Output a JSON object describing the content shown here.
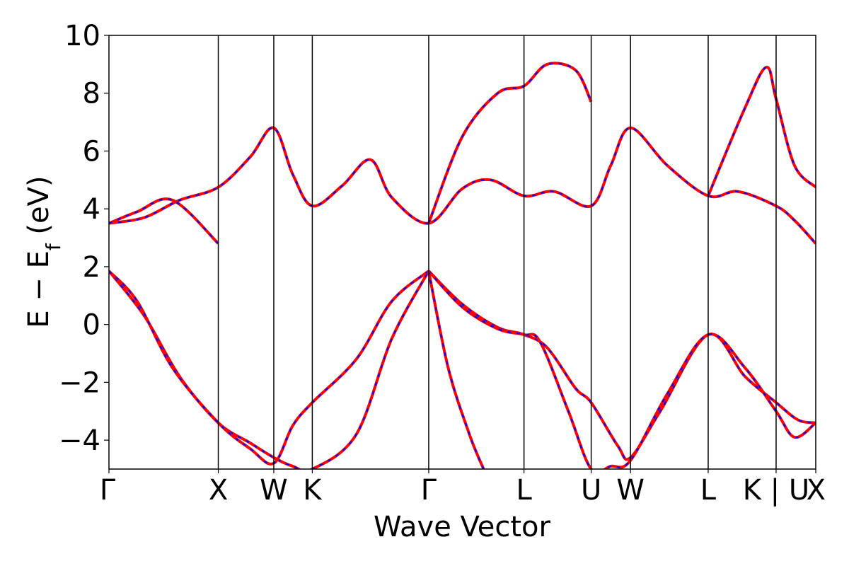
{
  "chart_data": {
    "type": "line",
    "title": "",
    "xlabel": "Wave Vector",
    "ylabel": "E − E",
    "ylabel_subscript": "f",
    "ylabel_unit": " (eV)",
    "ylim": [
      -5,
      10
    ],
    "yticks": [
      {
        "value": -4,
        "label": "−4"
      },
      {
        "value": -2,
        "label": "−2"
      },
      {
        "value": 0,
        "label": "0"
      },
      {
        "value": 2,
        "label": "2"
      },
      {
        "value": 4,
        "label": "4"
      },
      {
        "value": 6,
        "label": "6"
      },
      {
        "value": 8,
        "label": "8"
      },
      {
        "value": 10,
        "label": "10"
      }
    ],
    "xlim": [
      0,
      1
    ],
    "kpoints": [
      {
        "x": 0.0,
        "label": "Γ"
      },
      {
        "x": 0.1547,
        "label": "X"
      },
      {
        "x": 0.2332,
        "label": "W"
      },
      {
        "x": 0.2877,
        "label": "K"
      },
      {
        "x": 0.4524,
        "label": "Γ"
      },
      {
        "x": 0.5872,
        "label": "L"
      },
      {
        "x": 0.6823,
        "label": "U"
      },
      {
        "x": 0.7379,
        "label": "W"
      },
      {
        "x": 0.8478,
        "label": "L"
      },
      {
        "x": 0.9439,
        "label": "K | U"
      },
      {
        "x": 1.0,
        "label": "X"
      }
    ],
    "colors": {
      "solid": "#ff0000",
      "dashed": "#0000ff",
      "frame": "#000000"
    },
    "series": [
      {
        "style": "solid-red-with-dashed-blue",
        "x": [
          0,
          0.05,
          0.1,
          0.1547,
          0.2,
          0.2332,
          0.26,
          0.2877,
          0.35,
          0.4,
          0.4524
        ],
        "y": [
          1.85,
          0.3,
          -1.8,
          -3.4,
          -4.1,
          -4.6,
          -4.9,
          -5.0,
          -3.8,
          -0.5,
          1.85
        ]
      },
      {
        "style": "solid-red-with-dashed-blue",
        "x": [
          0,
          0.04,
          0.09,
          0.1547,
          0.2,
          0.2332,
          0.26,
          0.2877,
          0.35,
          0.4,
          0.4524
        ],
        "y": [
          1.85,
          0.8,
          -1.5,
          -3.4,
          -4.3,
          -4.8,
          -3.5,
          -2.7,
          -1.2,
          0.8,
          1.85
        ]
      },
      {
        "style": "solid-red-with-dashed-blue",
        "x": [
          0.4524,
          0.5,
          0.55,
          0.5872,
          0.62,
          0.66,
          0.6823,
          0.72,
          0.7379,
          0.78,
          0.8478,
          0.9,
          0.9439,
          0.975,
          1.0
        ],
        "y": [
          1.85,
          0.7,
          -0.1,
          -0.35,
          -0.8,
          -2.2,
          -2.7,
          -4.2,
          -4.6,
          -3.0,
          -0.35,
          -1.8,
          -2.7,
          -3.3,
          -3.4
        ]
      },
      {
        "style": "solid-red-with-dashed-blue",
        "x": [
          0.4524,
          0.5,
          0.55,
          0.5872,
          0.61,
          0.65,
          0.6823,
          0.71,
          0.7379,
          0.79,
          0.8478,
          0.9,
          0.9439,
          0.97,
          1.0
        ],
        "y": [
          1.85,
          0.6,
          -0.15,
          -0.35,
          -0.6,
          -3.0,
          -5.0,
          -4.9,
          -4.7,
          -2.4,
          -0.35,
          -1.5,
          -3.0,
          -3.9,
          -3.4
        ]
      },
      {
        "style": "solid-red-with-dashed-blue",
        "x": [
          0.4524,
          0.48,
          0.51,
          0.53
        ],
        "y": [
          1.85,
          -1.5,
          -3.8,
          -5.0
        ]
      },
      {
        "style": "solid-red-with-dashed-blue",
        "x": [
          0,
          0.05,
          0.1,
          0.1547,
          0.2,
          0.2332,
          0.26,
          0.2877,
          0.33,
          0.37,
          0.4,
          0.4524,
          0.5,
          0.54,
          0.5872,
          0.63,
          0.6823,
          0.71,
          0.7379,
          0.79,
          0.8478,
          0.89,
          0.9439,
          0.97,
          1.0
        ],
        "y": [
          3.5,
          3.7,
          4.3,
          4.75,
          5.8,
          6.8,
          5.2,
          4.1,
          4.8,
          5.7,
          4.4,
          3.5,
          4.7,
          5.0,
          4.45,
          4.6,
          4.1,
          5.5,
          6.8,
          5.5,
          4.45,
          4.6,
          4.1,
          3.6,
          2.8
        ]
      },
      {
        "style": "solid-red-with-dashed-blue",
        "x": [
          0,
          0.04,
          0.09,
          0.1547
        ],
        "y": [
          3.5,
          3.9,
          4.3,
          2.8
        ]
      },
      {
        "style": "solid-red-with-dashed-blue",
        "x": [
          0.4524,
          0.5,
          0.55,
          0.5872,
          0.62,
          0.66,
          0.6823
        ],
        "y": [
          3.5,
          6.5,
          8.0,
          8.25,
          9.0,
          8.8,
          7.7
        ]
      },
      {
        "style": "solid-red-with-dashed-blue",
        "x": [
          0.8478,
          0.9,
          0.93,
          0.9439,
          0.97,
          1.0
        ],
        "y": [
          4.45,
          7.5,
          8.9,
          7.8,
          5.5,
          4.75
        ]
      }
    ]
  }
}
